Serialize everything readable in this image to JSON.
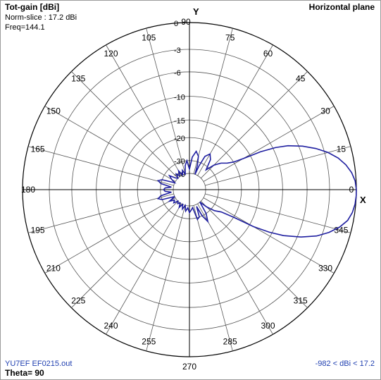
{
  "header": {
    "title": "Tot-gain [dBi]",
    "norm_slice": "Norm-slice : 17.2 dBi",
    "freq": "Freq=144.1",
    "plane": "Horizontal plane"
  },
  "footer": {
    "filename": "YU7EF EF0215.out",
    "theta": "Theta= 90",
    "range": "-982 < dBi < 17.2"
  },
  "chart_data": {
    "type": "polar",
    "title": "Tot-gain [dBi]",
    "axis_y_label": "Y",
    "axis_x_label": "X",
    "angle_labels": [
      "0",
      "15",
      "30",
      "45",
      "60",
      "75",
      "90",
      "105",
      "120",
      "135",
      "150",
      "165",
      "180",
      "195",
      "210",
      "225",
      "240",
      "255",
      "270",
      "285",
      "300",
      "315",
      "330",
      "345"
    ],
    "radial_ticks": [
      0,
      -3,
      -6,
      -10,
      -15,
      -20,
      -30,
      -40
    ],
    "max_gain_dbi": 17.2,
    "min_gain_dbi": -982,
    "frequency": 144.1,
    "series": [
      {
        "color": "#1f1fa0",
        "pattern_deg_db": [
          [
            0,
            0
          ],
          [
            3,
            -0.1
          ],
          [
            6,
            -0.4
          ],
          [
            9,
            -0.9
          ],
          [
            12,
            -1.6
          ],
          [
            15,
            -2.6
          ],
          [
            18,
            -3.9
          ],
          [
            21,
            -5.5
          ],
          [
            24,
            -7.5
          ],
          [
            26,
            -9.5
          ],
          [
            28,
            -12.5
          ],
          [
            29,
            -15
          ],
          [
            30,
            -17
          ],
          [
            32,
            -20
          ],
          [
            35,
            -22
          ],
          [
            40,
            -24
          ],
          [
            45,
            -27
          ],
          [
            50,
            -32
          ],
          [
            55,
            -26
          ],
          [
            60,
            -24
          ],
          [
            65,
            -26
          ],
          [
            68,
            -32
          ],
          [
            70,
            -40
          ],
          [
            72,
            -32
          ],
          [
            75,
            -27
          ],
          [
            80,
            -25
          ],
          [
            85,
            -28
          ],
          [
            90,
            -36
          ],
          [
            95,
            -30
          ],
          [
            100,
            -33
          ],
          [
            105,
            -40
          ],
          [
            110,
            -36
          ],
          [
            115,
            -40
          ],
          [
            120,
            -35
          ],
          [
            125,
            -39
          ],
          [
            130,
            -36
          ],
          [
            135,
            -40
          ],
          [
            140,
            -38
          ],
          [
            145,
            -33
          ],
          [
            150,
            -36
          ],
          [
            155,
            -40
          ],
          [
            160,
            -30
          ],
          [
            164,
            -28
          ],
          [
            168,
            -30
          ],
          [
            172,
            -38
          ],
          [
            176,
            -33
          ],
          [
            180,
            -32
          ],
          [
            184,
            -33
          ],
          [
            188,
            -38
          ],
          [
            192,
            -30
          ],
          [
            196,
            -28
          ],
          [
            200,
            -30
          ],
          [
            205,
            -40
          ],
          [
            210,
            -34
          ],
          [
            215,
            -38
          ],
          [
            220,
            -36
          ],
          [
            225,
            -40
          ],
          [
            230,
            -38
          ],
          [
            235,
            -40
          ],
          [
            240,
            -36
          ],
          [
            245,
            -40
          ],
          [
            250,
            -36
          ],
          [
            255,
            -40
          ],
          [
            260,
            -35
          ],
          [
            265,
            -38
          ],
          [
            270,
            -34
          ],
          [
            275,
            -36
          ],
          [
            280,
            -38
          ],
          [
            285,
            -29
          ],
          [
            290,
            -30
          ],
          [
            293,
            -38
          ],
          [
            296,
            -30
          ],
          [
            300,
            -26
          ],
          [
            305,
            -30
          ],
          [
            310,
            -40
          ],
          [
            315,
            -33
          ],
          [
            320,
            -28
          ],
          [
            325,
            -25
          ],
          [
            328,
            -20
          ],
          [
            330,
            -14
          ],
          [
            332,
            -10.5
          ],
          [
            334,
            -8
          ],
          [
            337,
            -5.5
          ],
          [
            340,
            -3.6
          ],
          [
            343,
            -2.3
          ],
          [
            346,
            -1.3
          ],
          [
            349,
            -0.6
          ],
          [
            352,
            -0.25
          ],
          [
            355,
            -0.07
          ],
          [
            358,
            0
          ]
        ]
      }
    ]
  }
}
